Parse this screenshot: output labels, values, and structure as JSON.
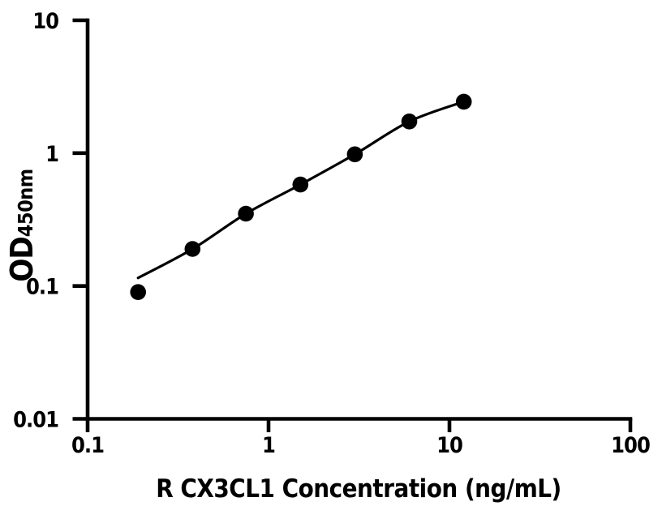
{
  "figure": {
    "background_color": "#ffffff",
    "ink_color": "#000000"
  },
  "chart_data": {
    "type": "scatter",
    "title": "",
    "xlabel": "R CX3CL1 Concentration (ng/mL)",
    "ylabel_main": "OD",
    "ylabel_sub": "450nm",
    "x_scale": "log",
    "y_scale": "log",
    "xlim": [
      0.1,
      100
    ],
    "ylim": [
      0.01,
      10
    ],
    "x_ticks": [
      {
        "value": 0.1,
        "label": "0.1"
      },
      {
        "value": 1,
        "label": "1"
      },
      {
        "value": 10,
        "label": "10"
      },
      {
        "value": 100,
        "label": "100"
      }
    ],
    "y_ticks": [
      {
        "value": 0.01,
        "label": "0.01"
      },
      {
        "value": 0.1,
        "label": "0.1"
      },
      {
        "value": 1,
        "label": "1"
      },
      {
        "value": 10,
        "label": "10"
      }
    ],
    "grid": false,
    "legend": "none",
    "series": [
      {
        "name": "standard-points",
        "type": "scatter",
        "marker": "circle",
        "color": "#000000",
        "x": [
          0.19,
          0.38,
          0.75,
          1.5,
          3,
          6,
          12
        ],
        "y": [
          0.09,
          0.19,
          0.35,
          0.58,
          0.98,
          1.73,
          2.44
        ]
      },
      {
        "name": "4pl-fit-curve",
        "type": "line",
        "color": "#000000",
        "x": [
          0.19,
          0.38,
          0.75,
          1.5,
          3,
          6,
          12
        ],
        "y": [
          0.115,
          0.19,
          0.35,
          0.58,
          0.98,
          1.73,
          2.44
        ]
      }
    ]
  }
}
